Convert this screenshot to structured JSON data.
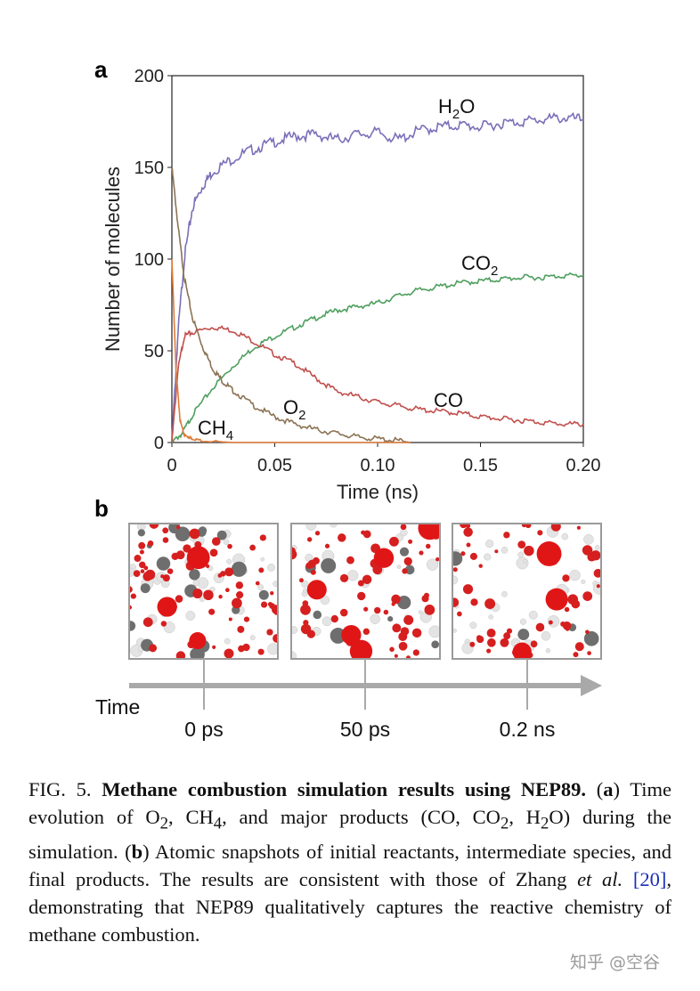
{
  "panel_a": {
    "label": "a",
    "chart_data": {
      "type": "line",
      "xlabel": "Time (ns)",
      "ylabel": "Number of molecules",
      "xlim": [
        0,
        0.2
      ],
      "ylim": [
        0,
        200
      ],
      "xticks": [
        "0",
        "0.05",
        "0.10",
        "0.15",
        "0.20"
      ],
      "yticks": [
        "0",
        "50",
        "100",
        "150",
        "200"
      ],
      "grid": false,
      "legend": "inline labels",
      "series": [
        {
          "name": "H2O",
          "label_main": "H",
          "label_sub": "2",
          "label_tail": "O",
          "color": "#7b6fb8",
          "x": [
            0,
            0.003,
            0.006,
            0.01,
            0.015,
            0.02,
            0.03,
            0.04,
            0.05,
            0.06,
            0.07,
            0.08,
            0.09,
            0.1,
            0.11,
            0.12,
            0.13,
            0.14,
            0.15,
            0.16,
            0.17,
            0.18,
            0.19,
            0.2
          ],
          "y": [
            0,
            60,
            100,
            128,
            140,
            148,
            155,
            160,
            164,
            167,
            168,
            165,
            168,
            169,
            165,
            170,
            172,
            173,
            172,
            174,
            175,
            176,
            177,
            176
          ]
        },
        {
          "name": "CO2",
          "label_main": "CO",
          "label_sub": "2",
          "label_tail": "",
          "color": "#4f9f5e",
          "x": [
            0,
            0.005,
            0.01,
            0.02,
            0.03,
            0.04,
            0.05,
            0.06,
            0.07,
            0.08,
            0.09,
            0.1,
            0.11,
            0.12,
            0.13,
            0.14,
            0.15,
            0.16,
            0.17,
            0.18,
            0.19,
            0.2
          ],
          "y": [
            0,
            5,
            15,
            30,
            42,
            52,
            58,
            63,
            68,
            72,
            74,
            76,
            80,
            83,
            85,
            87,
            88,
            89,
            90,
            90,
            91,
            91
          ]
        },
        {
          "name": "CO",
          "label_main": "CO",
          "label_sub": "",
          "label_tail": "",
          "color": "#c0504d",
          "x": [
            0,
            0.003,
            0.006,
            0.01,
            0.02,
            0.03,
            0.04,
            0.05,
            0.06,
            0.07,
            0.08,
            0.09,
            0.1,
            0.11,
            0.12,
            0.13,
            0.14,
            0.15,
            0.16,
            0.17,
            0.18,
            0.19,
            0.2
          ],
          "y": [
            0,
            40,
            58,
            60,
            63,
            61,
            55,
            48,
            43,
            35,
            28,
            25,
            22,
            20,
            18,
            17,
            16,
            14,
            13,
            12,
            11,
            10,
            10
          ]
        },
        {
          "name": "O2",
          "label_main": "O",
          "label_sub": "2",
          "label_tail": "",
          "color": "#8b7355",
          "x": [
            0,
            0.003,
            0.006,
            0.01,
            0.015,
            0.02,
            0.025,
            0.03,
            0.04,
            0.05,
            0.06,
            0.07,
            0.08,
            0.09,
            0.1,
            0.11,
            0.116
          ],
          "y": [
            150,
            118,
            90,
            68,
            52,
            40,
            33,
            28,
            20,
            14,
            10,
            7,
            5,
            3,
            2,
            1,
            0
          ]
        },
        {
          "name": "CH4",
          "label_main": "CH",
          "label_sub": "4",
          "label_tail": "",
          "color": "#e07b39",
          "x": [
            0,
            0.002,
            0.004,
            0.006,
            0.008,
            0.01,
            0.015,
            0.03,
            0.06,
            0.09,
            0.116
          ],
          "y": [
            100,
            40,
            12,
            4,
            3,
            2,
            1,
            0,
            0,
            0,
            0
          ]
        }
      ]
    }
  },
  "panel_b": {
    "label": "b",
    "time_label": "Time",
    "snapshots": [
      {
        "label": "0 ps"
      },
      {
        "label": "50 ps"
      },
      {
        "label": "0.2 ns"
      }
    ]
  },
  "caption": {
    "fig": "FIG. 5.",
    "bold_title": "Methane combustion simulation results using NEP89.",
    "part_a_label": "a",
    "part_a_text_1": "Time evolution of O",
    "part_a_text_2": ", CH",
    "part_a_text_3": ", and major products (CO, CO",
    "part_a_text_4": ", H",
    "part_a_text_5": "O) during the simulation.",
    "part_b_label": "b",
    "part_b_text": "Atomic snapshots of initial reactants, intermediate species, and final products. The results are consistent with those of Zhang",
    "et_al_1": "et",
    "et_al_2": "al.",
    "ref": "[20]",
    "tail": ", demonstrating that NEP89 qualitatively captures the reactive chemistry of methane combustion.",
    "sub2": "2",
    "sub4": "4"
  },
  "watermark": "知乎 @空谷"
}
